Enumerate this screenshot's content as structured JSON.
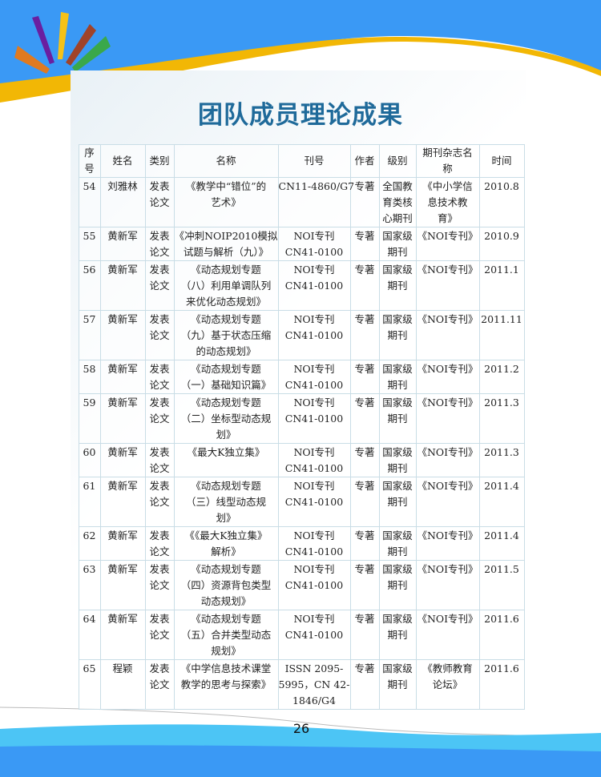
{
  "page": {
    "title": "团队成员理论成果",
    "page_number": "26"
  },
  "colors": {
    "header_blue": "#3a99f5",
    "gold": "#f2b705",
    "title": "#1f6a9a"
  },
  "table": {
    "headers": [
      "序\n号",
      "姓名",
      "类别",
      "名称",
      "刊号",
      "作者",
      "级别",
      "期刊杂志名\n称",
      "时间"
    ],
    "rows": [
      [
        "54",
        "刘雅林",
        "发表\n论文",
        "《教学中“错位”的\n艺术》",
        "CN11-4860/G7",
        "专著",
        "全国教\n育类核\n心期刊",
        "《中小学信\n息技术教\n育》",
        "2010.8"
      ],
      [
        "55",
        "黄新军",
        "发表\n论文",
        "《冲刺NOIP2010模拟\n试题与解析（九）》",
        "NOI专刊\nCN41-0100",
        "专著",
        "国家级\n期刊",
        "《NOI专刊》",
        "2010.9"
      ],
      [
        "56",
        "黄新军",
        "发表\n论文",
        "《动态规划专题\n（八）利用单调队列\n来优化动态规划》",
        "NOI专刊\nCN41-0100",
        "专著",
        "国家级\n期刊",
        "《NOI专刊》",
        "2011.1"
      ],
      [
        "57",
        "黄新军",
        "发表\n论文",
        "《动态规划专题\n（九）基于状态压缩\n的动态规划》",
        "NOI专刊\nCN41-0100",
        "专著",
        "国家级\n期刊",
        "《NOI专刊》",
        "2011.11"
      ],
      [
        "58",
        "黄新军",
        "发表\n论文",
        "《动态规划专题\n（一）基础知识篇》",
        "NOI专刊\nCN41-0100",
        "专著",
        "国家级\n期刊",
        "《NOI专刊》",
        "2011.2"
      ],
      [
        "59",
        "黄新军",
        "发表\n论文",
        "《动态规划专题\n（二）坐标型动态规\n划》",
        "NOI专刊\nCN41-0100",
        "专著",
        "国家级\n期刊",
        "《NOI专刊》",
        "2011.3"
      ],
      [
        "60",
        "黄新军",
        "发表\n论文",
        "《最大K独立集》",
        "NOI专刊\nCN41-0100",
        "专著",
        "国家级\n期刊",
        "《NOI专刊》",
        "2011.3"
      ],
      [
        "61",
        "黄新军",
        "发表\n论文",
        "《动态规划专题\n（三）线型动态规\n划》",
        "NOI专刊\nCN41-0100",
        "专著",
        "国家级\n期刊",
        "《NOI专刊》",
        "2011.4"
      ],
      [
        "62",
        "黄新军",
        "发表\n论文",
        "《《最大K独立集》\n解析》",
        "NOI专刊\nCN41-0100",
        "专著",
        "国家级\n期刊",
        "《NOI专刊》",
        "2011.4"
      ],
      [
        "63",
        "黄新军",
        "发表\n论文",
        "《动态规划专题\n（四）资源背包类型\n动态规划》",
        "NOI专刊\nCN41-0100",
        "专著",
        "国家级\n期刊",
        "《NOI专刊》",
        "2011.5"
      ],
      [
        "64",
        "黄新军",
        "发表\n论文",
        "《动态规划专题\n（五）合并类型动态\n规划》",
        "NOI专刊\nCN41-0100",
        "专著",
        "国家级\n期刊",
        "《NOI专刊》",
        "2011.6"
      ],
      [
        "65",
        "程颖",
        "发表\n论文",
        "《中学信息技术课堂\n教学的思考与探索》",
        "ISSN 2095-\n5995，CN 42-\n1846/G4",
        "专著",
        "国家级\n期刊",
        "《教师教育\n论坛》",
        "2011.6"
      ]
    ]
  }
}
